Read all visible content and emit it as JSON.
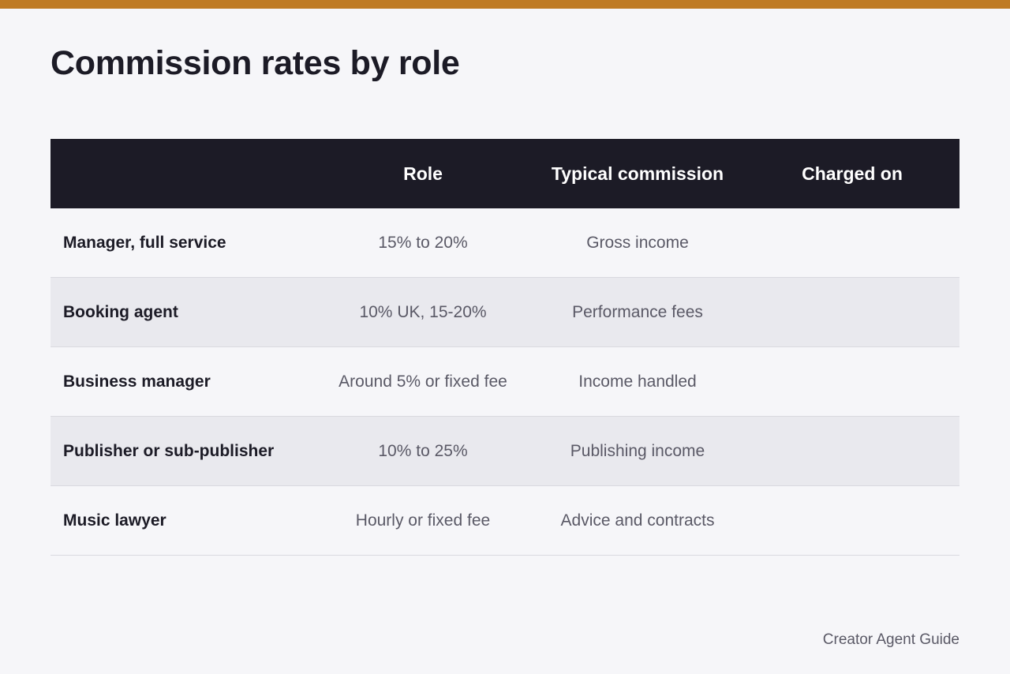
{
  "page": {
    "title": "Commission rates by role",
    "accent_color": "#bf7b25",
    "header_bg": "#1c1b26"
  },
  "table": {
    "headers": [
      "",
      "Role",
      "Typical commission",
      "Charged on"
    ],
    "rows": [
      {
        "label": "Manager, full service",
        "commission": "15% to 20%",
        "charged_on": "Gross income",
        "extra": ""
      },
      {
        "label": "Booking agent",
        "commission": "10% UK, 15-20%",
        "charged_on": "Performance fees",
        "extra": ""
      },
      {
        "label": "Business manager",
        "commission": "Around 5% or fixed fee",
        "charged_on": "Income handled",
        "extra": ""
      },
      {
        "label": "Publisher or sub-publisher",
        "commission": "10% to 25%",
        "charged_on": "Publishing income",
        "extra": ""
      },
      {
        "label": "Music lawyer",
        "commission": "Hourly or fixed fee",
        "charged_on": "Advice and contracts",
        "extra": ""
      }
    ]
  },
  "footer": {
    "credit": "Creator Agent Guide"
  }
}
